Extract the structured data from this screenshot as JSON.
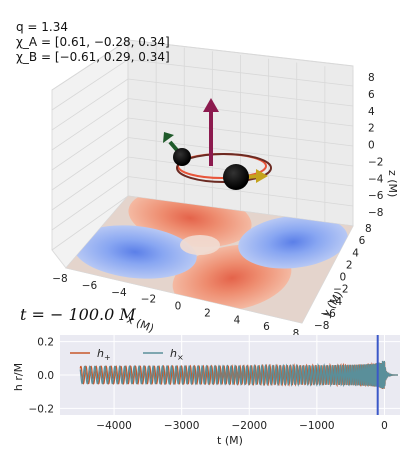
{
  "params": {
    "q": "q = 1.34",
    "chi_a": "χ_A = [0.61, −0.28, 0.34]",
    "chi_b": "χ_B = [−0.61, 0.29, 0.34]"
  },
  "time_label": "t = − 100.0 M",
  "colors": {
    "h_plus": "#c8572a",
    "h_cross": "#5a8f9a",
    "marker": "#3a58c8",
    "spin_up": "#8c1a4e",
    "spin_a": "#1f5a2a",
    "spin_b": "#c4a31c",
    "orbit_a": "#e8553a",
    "orbit_b": "#6b2a22"
  },
  "chart_data": [
    {
      "type": "3d-scene",
      "xlabel": "x (M)",
      "ylabel": "y (M)",
      "zlabel": "z (M)",
      "x_ticks": [
        "−8",
        "−6",
        "−4",
        "−2",
        "0",
        "2",
        "4",
        "6",
        "8"
      ],
      "y_ticks": [
        "−8",
        "−6",
        "−4",
        "−2",
        "0",
        "2",
        "4",
        "6",
        "8"
      ],
      "z_ticks": [
        "−8",
        "−6",
        "−4",
        "−2",
        "0",
        "2",
        "4",
        "6",
        "8"
      ],
      "xlim": [
        -8,
        8
      ],
      "ylim": [
        -8,
        8
      ],
      "zlim": [
        -8,
        8
      ],
      "grid": true,
      "floor_contour": "quadrupole strain pattern (red lobes / blue lobes)"
    },
    {
      "type": "line",
      "xlabel": "t (M)",
      "ylabel": "h r/M",
      "x_ticks": [
        "−4000",
        "−3000",
        "−2000",
        "−1000",
        "0"
      ],
      "y_ticks": [
        "0.2",
        "0.0",
        "−0.2"
      ],
      "xlim": [
        -4800,
        230
      ],
      "ylim": [
        -0.24,
        0.24
      ],
      "t_start": -4500,
      "t_merger": 0,
      "marker_t": -100,
      "grid": true,
      "legend_position": "top-left",
      "series": [
        {
          "name": "h+",
          "amplitude_start": 0.038,
          "amplitude_peak": 0.085
        },
        {
          "name": "h×",
          "amplitude_start": 0.038,
          "amplitude_peak": 0.085
        }
      ]
    }
  ]
}
